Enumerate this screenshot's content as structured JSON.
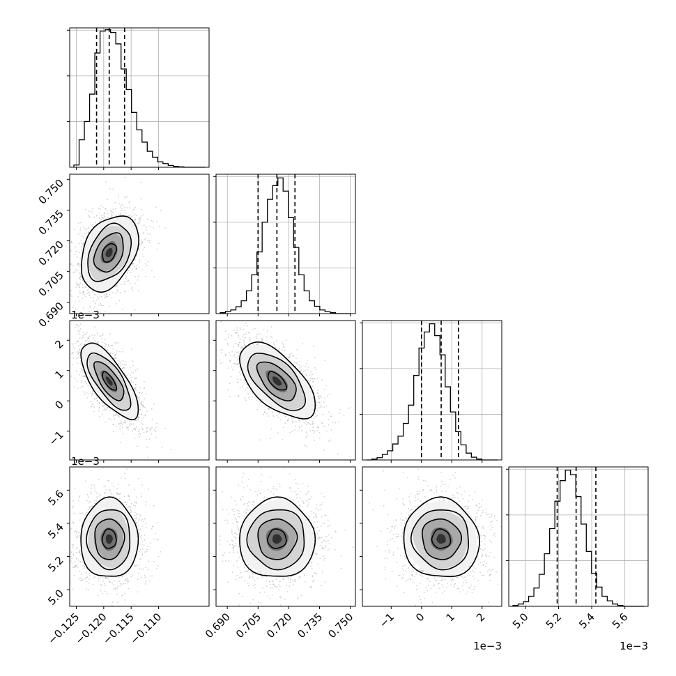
{
  "chart_data": {
    "type": "corner",
    "title": "",
    "parameters": [
      {
        "range": [
          -0.1262,
          -0.1008
        ],
        "ticks": [
          -0.125,
          -0.12,
          -0.115,
          -0.11
        ],
        "tick_labels": [
          "−0.125",
          "−0.120",
          "−0.115",
          "−0.110"
        ],
        "offset_label": "",
        "quantiles": [
          -0.1213,
          -0.119,
          -0.1162
        ],
        "hist_values": [
          0.05,
          0.6,
          1.0,
          1.6,
          2.5,
          2.98,
          3.01,
          2.95,
          2.7,
          2.15,
          1.7,
          1.2,
          0.82,
          0.55,
          0.35,
          0.22,
          0.12,
          0.08,
          0.04,
          0.02,
          0.01,
          0,
          0,
          0,
          0
        ]
      },
      {
        "range": [
          0.6845,
          0.7525
        ],
        "ticks": [
          0.69,
          0.705,
          0.72,
          0.735,
          0.75
        ],
        "tick_labels": [
          "0.690",
          "0.705",
          "0.720",
          "0.735",
          "0.750"
        ],
        "offset_label": "",
        "quantiles": [
          0.705,
          0.7142,
          0.723
        ],
        "hist_values": [
          0.02,
          0.05,
          0.08,
          0.15,
          0.28,
          0.5,
          0.85,
          1.35,
          2.0,
          2.5,
          2.8,
          2.97,
          2.68,
          2.1,
          1.45,
          0.85,
          0.5,
          0.28,
          0.16,
          0.08,
          0.04,
          0.02,
          0,
          0,
          0
        ]
      },
      {
        "range": [
          -0.00195,
          0.00265
        ],
        "ticks": [
          -0.001,
          0.0,
          0.001,
          0.002
        ],
        "tick_labels": [
          "−1",
          "0",
          "1",
          "2"
        ],
        "offset_label": "1e−3",
        "quantiles": [
          0.0,
          0.00065,
          0.00122
        ],
        "hist_values": [
          0,
          0.02,
          0.05,
          0.12,
          0.2,
          0.35,
          0.52,
          0.8,
          1.2,
          1.85,
          2.45,
          2.8,
          2.98,
          2.72,
          2.3,
          1.6,
          1.05,
          0.62,
          0.33,
          0.15,
          0.06,
          0.02,
          0,
          0,
          0
        ]
      },
      {
        "range": [
          0.0049,
          0.00574
        ],
        "ticks": [
          0.005,
          0.0052,
          0.0054,
          0.0056
        ],
        "tick_labels": [
          "5.0",
          "5.2",
          "5.4",
          "5.6"
        ],
        "offset_label": "1e−3",
        "quantiles": [
          0.005192,
          0.005306,
          0.005425
        ],
        "hist_values": [
          0.02,
          0.05,
          0.1,
          0.22,
          0.4,
          0.7,
          1.15,
          1.7,
          2.3,
          2.75,
          2.98,
          2.88,
          2.4,
          1.8,
          1.2,
          0.72,
          0.42,
          0.22,
          0.12,
          0.05,
          0.02,
          0,
          0,
          0,
          0
        ]
      }
    ],
    "histogram_ylim": [
      0,
      3.05
    ],
    "grid": true,
    "contour_levels": 3,
    "samples_drawn": true
  }
}
